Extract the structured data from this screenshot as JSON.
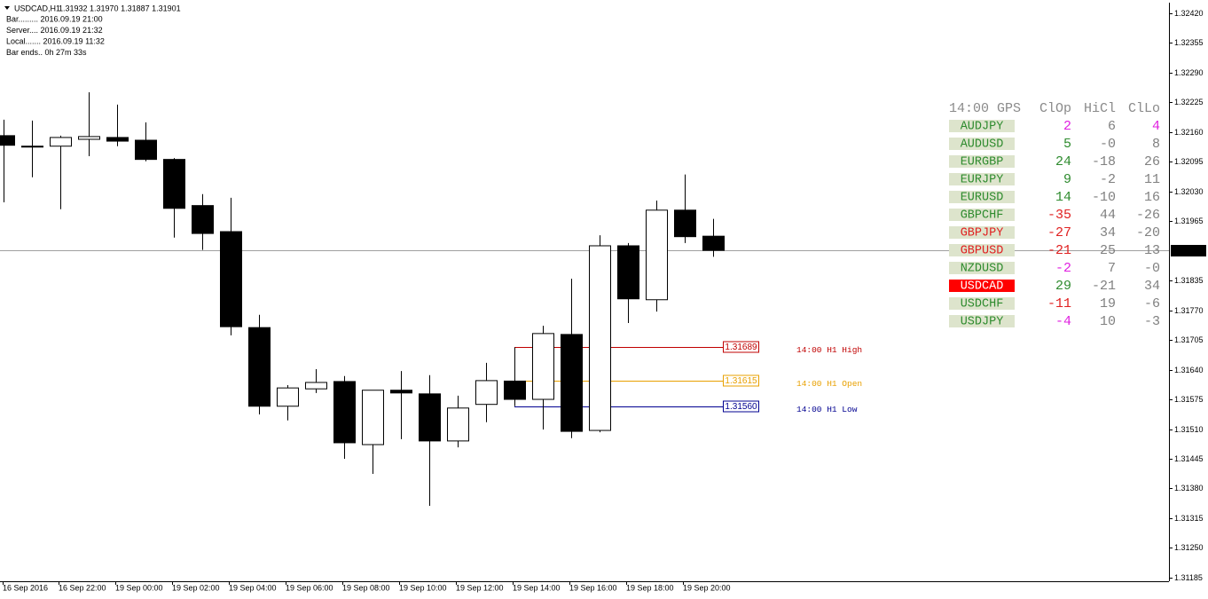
{
  "header": {
    "symbol": "USDCAD,H1",
    "quote": "1.31932 1.31970 1.31887 1.31901",
    "info": [
      "Bar......... 2016.09.19 21:00",
      "Server.... 2016.09.19 21:32",
      "Local....... 2016.09.19 11:32",
      "Bar ends.. 0h 27m 33s"
    ]
  },
  "chart_data": {
    "type": "candlestick",
    "categories": [
      "16 Sep 2016",
      null,
      "16 Sep 22:00",
      null,
      "19 Sep 00:00",
      null,
      "19 Sep 02:00",
      null,
      "19 Sep 04:00",
      null,
      "19 Sep 06:00",
      null,
      "19 Sep 08:00",
      null,
      "19 Sep 10:00",
      null,
      "19 Sep 12:00",
      null,
      "19 Sep 14:00",
      null,
      "19 Sep 16:00",
      null,
      "19 Sep 18:00",
      null,
      "19 Sep 20:00",
      null
    ],
    "open": [
      1.32152,
      1.32129,
      1.32129,
      1.32144,
      1.32148,
      1.32142,
      1.321,
      1.31999,
      1.31942,
      1.31732,
      1.3156,
      1.31598,
      1.31614,
      1.31476,
      1.31595,
      1.31587,
      1.31484,
      1.31564,
      1.31615,
      1.31575,
      1.31717,
      1.31507,
      1.31911,
      1.31793,
      1.31989,
      1.31932
    ],
    "high": [
      1.32187,
      1.32185,
      1.32152,
      1.32247,
      1.3222,
      1.32181,
      1.32103,
      1.32024,
      1.32016,
      1.3176,
      1.31606,
      1.31641,
      1.31626,
      1.31595,
      1.31637,
      1.31628,
      1.31583,
      1.31655,
      1.31689,
      1.31736,
      1.31839,
      1.31934,
      1.31917,
      1.3201,
      1.32067,
      1.3197
    ],
    "low": [
      1.32006,
      1.32061,
      1.31991,
      1.32107,
      1.32129,
      1.32096,
      1.31929,
      1.31902,
      1.31715,
      1.31542,
      1.31529,
      1.31589,
      1.31445,
      1.31412,
      1.31488,
      1.31342,
      1.3147,
      1.31525,
      1.3156,
      1.31509,
      1.3149,
      1.31503,
      1.31742,
      1.31767,
      1.31917,
      1.31887
    ],
    "close": [
      1.32131,
      1.32127,
      1.32148,
      1.3215,
      1.3214,
      1.321,
      1.31993,
      1.31938,
      1.31734,
      1.3156,
      1.316,
      1.31612,
      1.3148,
      1.31595,
      1.31589,
      1.31484,
      1.31556,
      1.31616,
      1.31575,
      1.31719,
      1.31505,
      1.31911,
      1.31795,
      1.31989,
      1.31931,
      1.31901
    ],
    "up_color": "#ffffff",
    "down_color": "#000000",
    "last_price_line_color": "#a0a0a0",
    "ylim": [
      1.31177,
      1.32443
    ],
    "yticks": [
      {
        "value": 1.3242,
        "label": "1.32420"
      },
      1.32355,
      {
        "value": 1.3229,
        "label": "1.32290"
      },
      1.32225,
      {
        "value": 1.3216,
        "label": "1.32160"
      },
      1.32095,
      {
        "value": 1.3203,
        "label": "1.32030"
      },
      1.31965,
      1.31835,
      {
        "value": 1.3177,
        "label": "1.31770"
      },
      1.31705,
      {
        "value": 1.3164,
        "label": "1.31640"
      },
      1.31575,
      {
        "value": 1.3151,
        "label": "1.31510"
      },
      1.31445,
      {
        "value": 1.3138,
        "label": "1.31380"
      },
      1.31315,
      {
        "value": 1.3125,
        "label": "1.31250"
      },
      1.31185
    ],
    "levels": [
      {
        "value": 1.31689,
        "label": "1.31689",
        "name": "14:00 H1 High",
        "color": "#c00000"
      },
      {
        "value": 1.31615,
        "label": "1.31615",
        "name": "14:00 H1 Open",
        "color": "#e8a000"
      },
      {
        "value": 1.3156,
        "label": "1.31560",
        "name": "14:00 H1 Low",
        "color": "#000090"
      }
    ]
  },
  "panel": {
    "header": [
      "14:00 GPS",
      "ClOp",
      "HiCl",
      "ClLo"
    ],
    "header_color": "#8a8a8a",
    "rows": [
      {
        "symbol": "AUDJPY",
        "symbol_color": "#2e8b2e",
        "symbol_bg": "#dde4cc",
        "values": [
          "2",
          "6",
          "4"
        ],
        "value_colors": [
          "#e020e0",
          "#808080",
          "#e020e0"
        ]
      },
      {
        "symbol": "AUDUSD",
        "symbol_color": "#2e8b2e",
        "symbol_bg": "#dde4cc",
        "values": [
          "5",
          "-0",
          "8"
        ],
        "value_colors": [
          "#2e8b2e",
          "#808080",
          "#808080"
        ]
      },
      {
        "symbol": "EURGBP",
        "symbol_color": "#2e8b2e",
        "symbol_bg": "#dde4cc",
        "values": [
          "24",
          "-18",
          "26"
        ],
        "value_colors": [
          "#2e8b2e",
          "#808080",
          "#808080"
        ]
      },
      {
        "symbol": "EURJPY",
        "symbol_color": "#2e8b2e",
        "symbol_bg": "#dde4cc",
        "values": [
          "9",
          "-2",
          "11"
        ],
        "value_colors": [
          "#2e8b2e",
          "#808080",
          "#808080"
        ]
      },
      {
        "symbol": "EURUSD",
        "symbol_color": "#2e8b2e",
        "symbol_bg": "#dde4cc",
        "values": [
          "14",
          "-10",
          "16"
        ],
        "value_colors": [
          "#2e8b2e",
          "#808080",
          "#808080"
        ]
      },
      {
        "symbol": "GBPCHF",
        "symbol_color": "#2e8b2e",
        "symbol_bg": "#dde4cc",
        "values": [
          "-35",
          "44",
          "-26"
        ],
        "value_colors": [
          "#e02020",
          "#808080",
          "#808080"
        ]
      },
      {
        "symbol": "GBPJPY",
        "symbol_color": "#e02020",
        "symbol_bg": "#dde4cc",
        "values": [
          "-27",
          "34",
          "-20"
        ],
        "value_colors": [
          "#e02020",
          "#808080",
          "#808080"
        ]
      },
      {
        "symbol": "GBPUSD",
        "symbol_color": "#e02020",
        "symbol_bg": "#dde4cc",
        "values": [
          "-21",
          "25",
          "13"
        ],
        "value_colors": [
          "#e02020",
          "#808080",
          "#808080"
        ]
      },
      {
        "symbol": "NZDUSD",
        "symbol_color": "#2e8b2e",
        "symbol_bg": "#dde4cc",
        "values": [
          "-2",
          "7",
          "-0"
        ],
        "value_colors": [
          "#e020e0",
          "#808080",
          "#808080"
        ]
      },
      {
        "symbol": "USDCAD",
        "symbol_color": "#ffffff",
        "symbol_bg": "#ff0000",
        "values": [
          "29",
          "-21",
          "34"
        ],
        "value_colors": [
          "#2e8b2e",
          "#808080",
          "#808080"
        ]
      },
      {
        "symbol": "USDCHF",
        "symbol_color": "#2e8b2e",
        "symbol_bg": "#dde4cc",
        "values": [
          "-11",
          "19",
          "-6"
        ],
        "value_colors": [
          "#e02020",
          "#808080",
          "#808080"
        ]
      },
      {
        "symbol": "USDJPY",
        "symbol_color": "#2e8b2e",
        "symbol_bg": "#dde4cc",
        "values": [
          "-4",
          "10",
          "-3"
        ],
        "value_colors": [
          "#e020e0",
          "#808080",
          "#808080"
        ]
      }
    ]
  }
}
